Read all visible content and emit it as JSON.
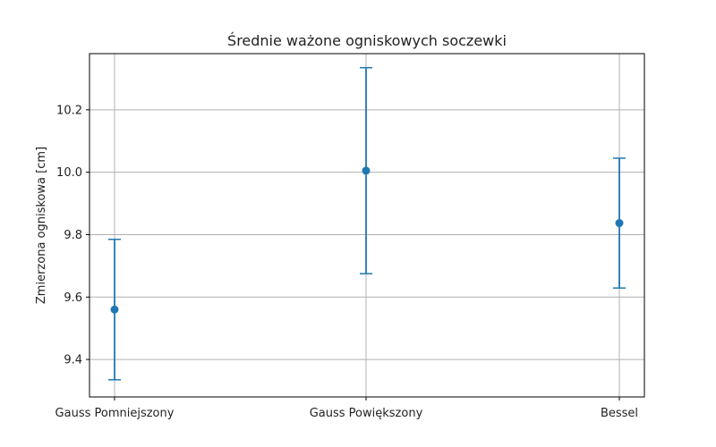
{
  "chart_data": {
    "type": "scatter",
    "title": "Średnie ważone ogniskowych soczewki",
    "xlabel": "",
    "ylabel": "Zmierzona ogniskowa [cm]",
    "categories": [
      "Gauss Pomniejszony",
      "Gauss Powiększony",
      "Bessel"
    ],
    "series": [
      {
        "values": [
          9.56,
          10.005,
          9.837
        ],
        "errors": [
          0.225,
          0.33,
          0.208
        ]
      }
    ],
    "ylim": [
      9.28,
      10.38
    ],
    "yticks": [
      9.4,
      9.6,
      9.8,
      10.0,
      10.2
    ],
    "ytick_labels": [
      "9.4",
      "9.6",
      "9.8",
      "10.0",
      "10.2"
    ],
    "grid": true,
    "colors": {
      "series": "#1f77b4",
      "grid": "#b0b0b0",
      "axis": "#000000"
    }
  }
}
